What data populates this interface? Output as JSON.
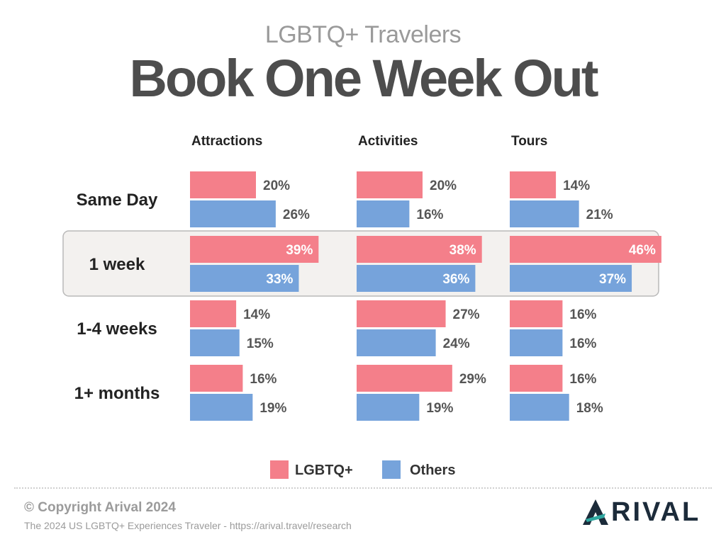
{
  "header": {
    "subtitle": "LGBTQ+ Travelers",
    "title": "Book One Week Out"
  },
  "chart_data": {
    "type": "bar",
    "orientation": "horizontal",
    "panels": [
      "Attractions",
      "Activities",
      "Tours"
    ],
    "categories": [
      "Same Day",
      "1 week",
      "1-4 weeks",
      "1+ months"
    ],
    "highlighted_category": "1 week",
    "series": [
      {
        "name": "LGBTQ+",
        "color": "#f47f8a",
        "values": {
          "Attractions": [
            20,
            39,
            14,
            16
          ],
          "Activities": [
            20,
            38,
            27,
            29
          ],
          "Tours": [
            14,
            46,
            16,
            16
          ]
        }
      },
      {
        "name": "Others",
        "color": "#76a3db",
        "values": {
          "Attractions": [
            26,
            33,
            15,
            19
          ],
          "Activities": [
            16,
            36,
            24,
            19
          ],
          "Tours": [
            21,
            37,
            16,
            18
          ]
        }
      }
    ],
    "unit": "%",
    "legend_position": "bottom-center"
  },
  "footer": {
    "copyright": "© Copyright Arival 2024",
    "source": "The 2024 US LGBTQ+ Experiences Traveler - https://arival.travel/research",
    "logo_text": "RIVAL",
    "logo_icon": "arival-a-logo-icon"
  }
}
